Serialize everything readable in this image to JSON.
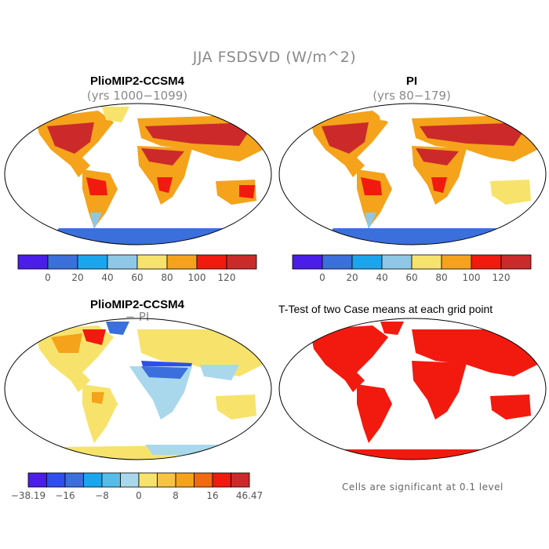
{
  "title": "JJA FSDSVD (W/m^2)",
  "panels": [
    {
      "title": "PlioMIP2-CCSM4",
      "subtitle": "(yrs 1000−1099)"
    },
    {
      "title": "PI",
      "subtitle": "(yrs 80−179)"
    },
    {
      "title": "PlioMIP2-CCSM4",
      "subtitle": "− PI"
    },
    {
      "title": "T-Test of two Case means at each grid point",
      "subtitle": ""
    }
  ],
  "colorbar_abs": {
    "labels": [
      "0",
      "20",
      "40",
      "60",
      "80",
      "100",
      "120"
    ],
    "colors": [
      "#4a1de8",
      "#3a6fdc",
      "#19a6ee",
      "#8fc8e6",
      "#f7e36b",
      "#f4a31b",
      "#f21a0e",
      "#cc2a2a"
    ]
  },
  "colorbar_diff": {
    "labels": [
      "−38.19",
      "−16",
      "−8",
      "0",
      "8",
      "16",
      "46.47"
    ],
    "colors": [
      "#4a1de8",
      "#2f4ef0",
      "#3a6fdc",
      "#19a6ee",
      "#55bde8",
      "#a9d8ec",
      "#f7e36b",
      "#f6c442",
      "#f4a31b",
      "#f26a10",
      "#f21a0e",
      "#cc2a2a"
    ]
  },
  "note": "Cells are significant at 0.1 level"
}
